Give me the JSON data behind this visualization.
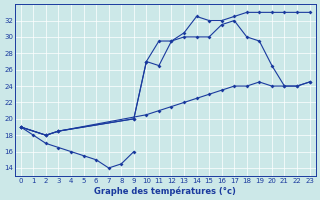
{
  "title": "Graphe des températures (°c)",
  "bg_color": "#cce8e8",
  "line_color": "#1a3a9e",
  "ylim": [
    13,
    34
  ],
  "xlim": [
    -0.5,
    23.5
  ],
  "yticks": [
    14,
    16,
    18,
    20,
    22,
    24,
    26,
    28,
    30,
    32
  ],
  "xticks": [
    0,
    1,
    2,
    3,
    4,
    5,
    6,
    7,
    8,
    9,
    10,
    11,
    12,
    13,
    14,
    15,
    16,
    17,
    18,
    19,
    20,
    21,
    22,
    23
  ],
  "series": [
    {
      "x": [
        0,
        1,
        2,
        3,
        4,
        5,
        6,
        7,
        8,
        9
      ],
      "y": [
        19,
        18,
        17,
        16.5,
        16,
        15.5,
        15,
        14,
        14.5,
        16
      ]
    },
    {
      "x": [
        0,
        2,
        3,
        10,
        11,
        12,
        13,
        14,
        15,
        16,
        17,
        18,
        19,
        20,
        21,
        22,
        23
      ],
      "y": [
        19,
        18,
        18.5,
        20.5,
        21,
        21.5,
        22,
        22.5,
        23,
        23.5,
        24,
        24,
        24.5,
        24,
        24,
        24,
        24.5
      ]
    },
    {
      "x": [
        0,
        2,
        3,
        9,
        10,
        11,
        12,
        13,
        14,
        15,
        16,
        17,
        18,
        19,
        20,
        21,
        22,
        23
      ],
      "y": [
        19,
        18,
        18.5,
        20,
        27,
        26.5,
        29.5,
        30,
        30,
        30,
        31.5,
        32,
        30,
        29.5,
        26.5,
        24,
        24,
        24.5
      ]
    },
    {
      "x": [
        0,
        2,
        3,
        9,
        10,
        11,
        12,
        13,
        14,
        15,
        16,
        17,
        18,
        19,
        20,
        21,
        22,
        23
      ],
      "y": [
        19,
        18,
        18.5,
        20,
        27,
        29.5,
        29.5,
        30.5,
        32.5,
        32,
        32,
        32.5,
        33,
        33,
        33,
        33,
        33,
        33
      ]
    }
  ]
}
